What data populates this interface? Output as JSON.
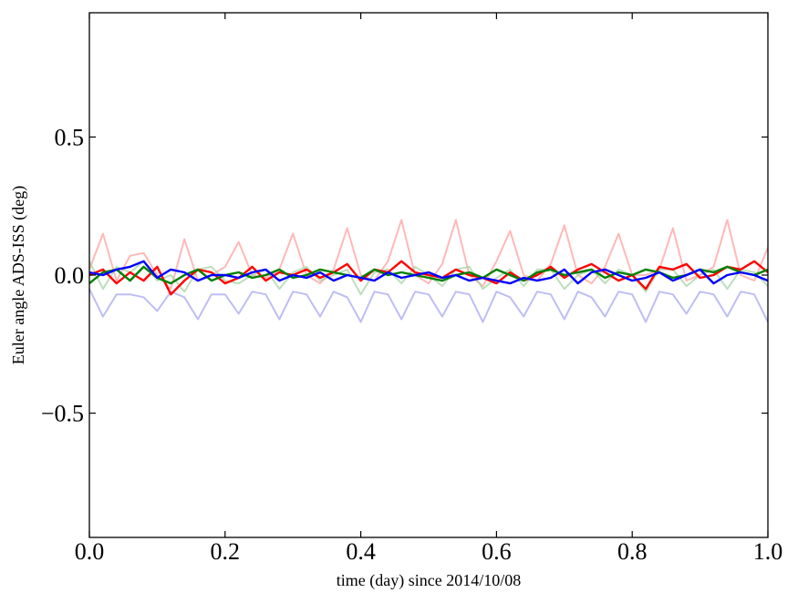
{
  "chart_data": {
    "type": "line",
    "title": "",
    "xlabel": "time (day) since 2014/10/08",
    "ylabel": "Euler angle ADS-ISS (deg)",
    "xlim": [
      0.0,
      1.0
    ],
    "ylim": [
      -0.95,
      0.95
    ],
    "x_ticks": [
      0.0,
      0.2,
      0.4,
      0.6,
      0.8,
      1.0
    ],
    "x_tick_labels": [
      "0.0",
      "0.2",
      "0.4",
      "0.6",
      "0.8",
      "1.0"
    ],
    "y_ticks": [
      -0.5,
      0.0,
      0.5
    ],
    "y_tick_labels": [
      "−0.5",
      "0.0",
      "0.5"
    ],
    "grid": false,
    "legend": "none",
    "x": [
      0.0,
      0.02,
      0.04,
      0.06,
      0.08,
      0.1,
      0.12,
      0.14,
      0.16,
      0.18,
      0.2,
      0.22,
      0.24,
      0.26,
      0.28,
      0.3,
      0.32,
      0.34,
      0.36,
      0.38,
      0.4,
      0.42,
      0.44,
      0.46,
      0.48,
      0.5,
      0.52,
      0.54,
      0.56,
      0.58,
      0.6,
      0.62,
      0.64,
      0.66,
      0.68,
      0.7,
      0.72,
      0.74,
      0.76,
      0.78,
      0.8,
      0.82,
      0.84,
      0.86,
      0.88,
      0.9,
      0.92,
      0.94,
      0.96,
      0.98,
      1.0
    ],
    "series": [
      {
        "name": "faint red",
        "color": "#ff9a9a",
        "opacity": 0.7,
        "width": 2,
        "values": [
          0.02,
          0.15,
          -0.02,
          0.07,
          0.08,
          0.0,
          -0.05,
          0.13,
          -0.02,
          0.0,
          0.03,
          0.12,
          0.0,
          -0.01,
          0.02,
          0.15,
          0.0,
          -0.03,
          0.02,
          0.17,
          0.0,
          -0.02,
          0.05,
          0.2,
          0.0,
          -0.03,
          0.04,
          0.2,
          0.0,
          -0.04,
          0.05,
          0.16,
          0.0,
          -0.02,
          0.04,
          0.18,
          0.0,
          -0.03,
          0.03,
          0.15,
          0.0,
          0.0,
          0.02,
          0.17,
          -0.02,
          0.0,
          0.03,
          0.2,
          0.0,
          -0.02,
          0.1
        ]
      },
      {
        "name": "faint green",
        "color": "#9fd29f",
        "opacity": 0.7,
        "width": 2,
        "values": [
          0.05,
          -0.05,
          0.03,
          0.01,
          0.05,
          -0.02,
          0.0,
          -0.06,
          0.02,
          0.03,
          -0.02,
          -0.03,
          0.0,
          0.02,
          -0.05,
          0.01,
          0.03,
          -0.02,
          0.0,
          0.02,
          -0.07,
          0.01,
          0.02,
          -0.03,
          0.03,
          0.0,
          -0.04,
          0.02,
          0.03,
          -0.05,
          -0.01,
          0.02,
          -0.04,
          0.02,
          0.02,
          -0.05,
          0.0,
          0.02,
          -0.03,
          0.02,
          0.0,
          -0.06,
          0.02,
          0.02,
          -0.04,
          0.0,
          0.02,
          -0.05,
          0.02,
          0.01,
          -0.04
        ]
      },
      {
        "name": "faint blue",
        "color": "#a8a8f0",
        "opacity": 0.75,
        "width": 2,
        "values": [
          -0.05,
          -0.15,
          -0.07,
          -0.07,
          -0.08,
          -0.13,
          -0.06,
          -0.08,
          -0.16,
          -0.07,
          -0.07,
          -0.14,
          -0.06,
          -0.07,
          -0.16,
          -0.06,
          -0.07,
          -0.15,
          -0.06,
          -0.08,
          -0.17,
          -0.06,
          -0.07,
          -0.16,
          -0.06,
          -0.07,
          -0.15,
          -0.06,
          -0.07,
          -0.17,
          -0.06,
          -0.08,
          -0.15,
          -0.06,
          -0.07,
          -0.16,
          -0.06,
          -0.08,
          -0.15,
          -0.06,
          -0.07,
          -0.17,
          -0.06,
          -0.07,
          -0.14,
          -0.06,
          -0.07,
          -0.15,
          -0.06,
          -0.07,
          -0.17
        ]
      },
      {
        "name": "red",
        "color": "#ff0000",
        "opacity": 1,
        "width": 2.4,
        "values": [
          0.0,
          0.02,
          -0.03,
          0.01,
          -0.02,
          0.03,
          -0.07,
          -0.02,
          0.02,
          0.01,
          -0.03,
          -0.01,
          0.03,
          -0.02,
          0.01,
          0.0,
          0.02,
          -0.01,
          0.01,
          0.04,
          -0.02,
          0.02,
          0.01,
          0.05,
          0.01,
          0.0,
          -0.01,
          0.02,
          0.0,
          -0.01,
          -0.03,
          0.01,
          -0.02,
          0.0,
          0.03,
          -0.01,
          0.02,
          0.04,
          0.01,
          -0.02,
          0.0,
          -0.05,
          0.03,
          0.02,
          0.04,
          -0.01,
          0.0,
          0.03,
          0.02,
          0.05,
          0.01
        ]
      },
      {
        "name": "green",
        "color": "#008000",
        "opacity": 1,
        "width": 2.4,
        "values": [
          -0.03,
          0.01,
          0.02,
          -0.02,
          0.03,
          -0.01,
          -0.03,
          0.0,
          0.02,
          -0.02,
          0.0,
          0.01,
          -0.01,
          0.0,
          0.02,
          -0.01,
          0.0,
          0.02,
          0.01,
          0.0,
          -0.01,
          0.02,
          0.0,
          0.01,
          0.0,
          -0.01,
          -0.02,
          0.0,
          0.01,
          -0.01,
          0.02,
          0.0,
          -0.02,
          0.01,
          0.02,
          0.0,
          0.01,
          0.02,
          -0.01,
          0.01,
          0.0,
          0.02,
          0.01,
          -0.01,
          0.0,
          0.02,
          0.01,
          0.03,
          0.01,
          0.0,
          0.02
        ]
      },
      {
        "name": "blue",
        "color": "#0000ff",
        "opacity": 1,
        "width": 2.4,
        "values": [
          0.01,
          0.0,
          0.02,
          0.03,
          0.05,
          -0.01,
          0.02,
          0.01,
          -0.02,
          0.0,
          0.0,
          -0.01,
          0.01,
          0.02,
          -0.02,
          0.0,
          -0.01,
          0.01,
          -0.02,
          0.0,
          -0.01,
          -0.02,
          0.01,
          -0.01,
          0.0,
          0.01,
          -0.01,
          0.0,
          -0.02,
          -0.01,
          -0.02,
          -0.03,
          -0.01,
          -0.02,
          -0.01,
          0.02,
          -0.03,
          0.01,
          0.02,
          0.0,
          -0.02,
          -0.01,
          0.01,
          -0.02,
          0.0,
          0.02,
          -0.03,
          0.0,
          0.01,
          0.0,
          -0.02
        ]
      }
    ]
  }
}
